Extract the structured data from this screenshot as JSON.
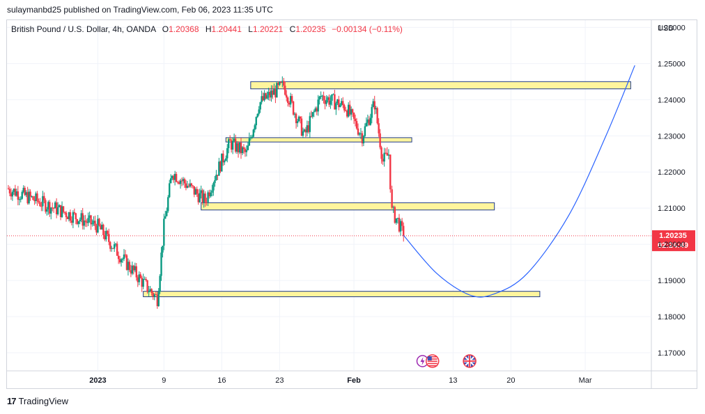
{
  "header": {
    "publisher": "sulaymanbd25 published on TradingView.com, Feb 06, 2023 11:35 UTC"
  },
  "legend": {
    "symbol": "British Pound / U.S. Dollar, 4h, OANDA",
    "open_label": "O",
    "open": "1.20368",
    "high_label": "H",
    "high": "1.20441",
    "low_label": "L",
    "low": "1.20221",
    "close_label": "C",
    "close": "1.20235",
    "change": "−0.00134 (−0.11%)"
  },
  "price_tag": {
    "price": "1.20235",
    "countdown": "02:24:49"
  },
  "footer": {
    "brand": "TradingView",
    "logo_mark": "17"
  },
  "colors": {
    "up": "#089981",
    "down": "#f23645",
    "zone_fill": "#fff59d",
    "zone_stroke": "#1e3a8a",
    "projection": "#2962ff"
  },
  "icons": [
    "lightning-event-icon",
    "us-flag-event-icon",
    "uk-flag-event-icon"
  ],
  "chart_data": {
    "type": "candlestick",
    "symbol": "GBPUSD",
    "timeframe": "4h",
    "currency_label": "USD",
    "ylim": [
      1.165,
      1.262
    ],
    "y_ticks": [
      "1.26000",
      "1.25000",
      "1.24000",
      "1.23000",
      "1.22000",
      "1.21000",
      "1.20000",
      "1.19000",
      "1.18000",
      "1.17000"
    ],
    "y_tick_values": [
      1.26,
      1.25,
      1.24,
      1.23,
      1.22,
      1.21,
      1.2,
      1.19,
      1.18,
      1.17
    ],
    "x_ticks": [
      "2023",
      "9",
      "16",
      "23",
      "Feb",
      "13",
      "20",
      "Mar"
    ],
    "x_tick_days": [
      0,
      8,
      15,
      22,
      31,
      43,
      50,
      59
    ],
    "x_range_days": [
      -11,
      67
    ],
    "last_price": 1.20235,
    "key_points": [
      {
        "day": -11,
        "price": 1.2155
      },
      {
        "day": 0,
        "price": 1.205
      },
      {
        "day": 3,
        "price": 1.196
      },
      {
        "day": 6,
        "price": 1.188
      },
      {
        "day": 7.2,
        "price": 1.185
      },
      {
        "day": 8,
        "price": 1.205
      },
      {
        "day": 9,
        "price": 1.22
      },
      {
        "day": 13,
        "price": 1.212
      },
      {
        "day": 14,
        "price": 1.218
      },
      {
        "day": 16,
        "price": 1.228
      },
      {
        "day": 18,
        "price": 1.225
      },
      {
        "day": 19.5,
        "price": 1.239
      },
      {
        "day": 22.5,
        "price": 1.244
      },
      {
        "day": 25,
        "price": 1.23
      },
      {
        "day": 27,
        "price": 1.241
      },
      {
        "day": 30,
        "price": 1.238
      },
      {
        "day": 32,
        "price": 1.23
      },
      {
        "day": 33.5,
        "price": 1.239
      },
      {
        "day": 34.5,
        "price": 1.223
      },
      {
        "day": 35.2,
        "price": 1.225
      },
      {
        "day": 35.6,
        "price": 1.209
      },
      {
        "day": 36.3,
        "price": 1.2065
      },
      {
        "day": 37,
        "price": 1.20235
      }
    ],
    "zones": [
      {
        "from_day": 18.5,
        "to_day": 64.5,
        "price_low": 1.243,
        "price_high": 1.245
      },
      {
        "from_day": 15.5,
        "to_day": 38.0,
        "price_low": 1.2283,
        "price_high": 1.2295
      },
      {
        "from_day": 12.5,
        "to_day": 48.0,
        "price_low": 1.2095,
        "price_high": 1.2115
      },
      {
        "from_day": 5.5,
        "to_day": 53.5,
        "price_low": 1.1855,
        "price_high": 1.187
      }
    ],
    "projection": [
      {
        "day": 37.0,
        "price": 1.2025
      },
      {
        "day": 41.0,
        "price": 1.192
      },
      {
        "day": 45.0,
        "price": 1.186
      },
      {
        "day": 48.0,
        "price": 1.1863
      },
      {
        "day": 52.0,
        "price": 1.192
      },
      {
        "day": 57.0,
        "price": 1.208
      },
      {
        "day": 61.5,
        "price": 1.23
      },
      {
        "day": 65.0,
        "price": 1.2495
      }
    ],
    "event_days": [
      39.3,
      40.5,
      45.0
    ]
  }
}
